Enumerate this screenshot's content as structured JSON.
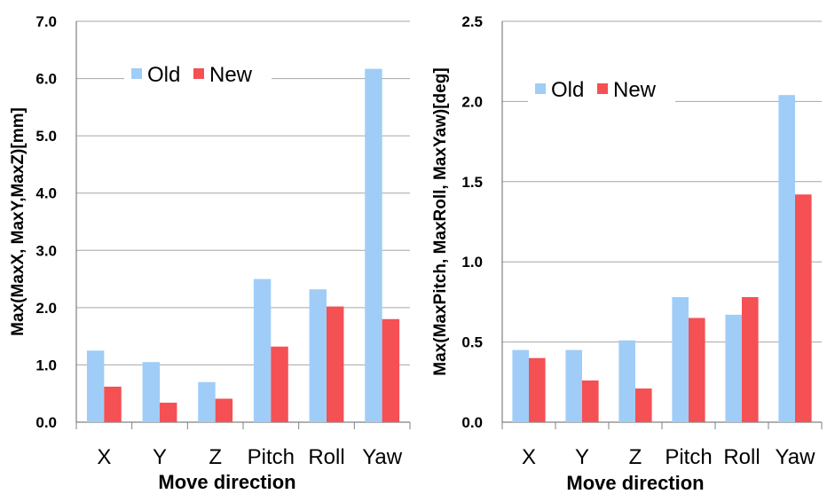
{
  "chart_data": [
    {
      "type": "bar",
      "categories": [
        "X",
        "Y",
        "Z",
        "Pitch",
        "Roll",
        "Yaw"
      ],
      "series": [
        {
          "name": "Old",
          "values": [
            1.25,
            1.05,
            0.7,
            2.5,
            2.32,
            6.17
          ]
        },
        {
          "name": "New",
          "values": [
            0.62,
            0.34,
            0.41,
            1.32,
            2.02,
            1.8
          ]
        }
      ],
      "xlabel": "Move direction",
      "ylabel": "Max(MaxX,  MaxY,MaxZ)[mm]",
      "ylim": [
        0,
        7
      ],
      "yticks": [
        "0.0",
        "1.0",
        "2.0",
        "3.0",
        "4.0",
        "5.0",
        "6.0",
        "7.0"
      ],
      "grid": true,
      "legend_position": "top-center"
    },
    {
      "type": "bar",
      "categories": [
        "X",
        "Y",
        "Z",
        "Pitch",
        "Roll",
        "Yaw"
      ],
      "series": [
        {
          "name": "Old",
          "values": [
            0.45,
            0.45,
            0.51,
            0.78,
            0.67,
            2.04
          ]
        },
        {
          "name": "New",
          "values": [
            0.4,
            0.26,
            0.21,
            0.65,
            0.78,
            1.42
          ]
        }
      ],
      "xlabel": "Move direction",
      "ylabel": "Max(MaxPitch,  MaxRoll,  MaxYaw)[deg]",
      "ylim": [
        0,
        2.5
      ],
      "yticks": [
        "0.0",
        "0.5",
        "1.0",
        "1.5",
        "2.0",
        "2.5"
      ],
      "grid": true,
      "legend_position": "top-center"
    }
  ],
  "colors": {
    "old": "#9fcdf7",
    "new": "#f55053",
    "grid": "#a6a6a6",
    "axis": "#808080"
  }
}
